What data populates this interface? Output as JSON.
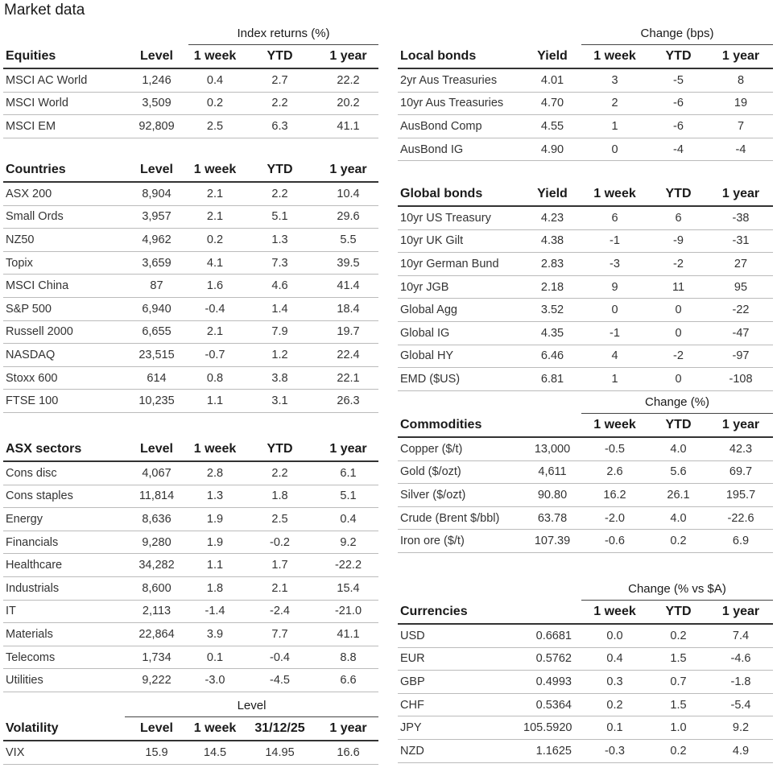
{
  "title": "Market data",
  "tables": [
    {
      "group_header": "Index returns (%)",
      "columns": [
        "Equities",
        "Level",
        "1 week",
        "YTD",
        "1 year"
      ],
      "rows": [
        [
          "MSCI AC World",
          "1,246",
          "0.4",
          "2.7",
          "22.2"
        ],
        [
          "MSCI World",
          "3,509",
          "0.2",
          "2.2",
          "20.2"
        ],
        [
          "MSCI EM",
          "92,809",
          "2.5",
          "6.3",
          "41.1"
        ]
      ]
    },
    {
      "columns": [
        "Countries",
        "Level",
        "1 week",
        "YTD",
        "1 year"
      ],
      "rows": [
        [
          "ASX 200",
          "8,904",
          "2.1",
          "2.2",
          "10.4"
        ],
        [
          "Small Ords",
          "3,957",
          "2.1",
          "5.1",
          "29.6"
        ],
        [
          "NZ50",
          "4,962",
          "0.2",
          "1.3",
          "5.5"
        ],
        [
          "Topix",
          "3,659",
          "4.1",
          "7.3",
          "39.5"
        ],
        [
          "MSCI China",
          "87",
          "1.6",
          "4.6",
          "41.4"
        ],
        [
          "S&P 500",
          "6,940",
          "-0.4",
          "1.4",
          "18.4"
        ],
        [
          "Russell 2000",
          "6,655",
          "2.1",
          "7.9",
          "19.7"
        ],
        [
          "NASDAQ",
          "23,515",
          "-0.7",
          "1.2",
          "22.4"
        ],
        [
          "Stoxx 600",
          "614",
          "0.8",
          "3.8",
          "22.1"
        ],
        [
          "FTSE 100",
          "10,235",
          "1.1",
          "3.1",
          "26.3"
        ]
      ]
    },
    {
      "columns": [
        "ASX sectors",
        "Level",
        "1 week",
        "YTD",
        "1 year"
      ],
      "rows": [
        [
          "Cons disc",
          "4,067",
          "2.8",
          "2.2",
          "6.1"
        ],
        [
          "Cons staples",
          "11,814",
          "1.3",
          "1.8",
          "5.1"
        ],
        [
          "Energy",
          "8,636",
          "1.9",
          "2.5",
          "0.4"
        ],
        [
          "Financials",
          "9,280",
          "1.9",
          "-0.2",
          "9.2"
        ],
        [
          "Healthcare",
          "34,282",
          "1.1",
          "1.7",
          "-22.2"
        ],
        [
          "Industrials",
          "8,600",
          "1.8",
          "2.1",
          "15.4"
        ],
        [
          "IT",
          "2,113",
          "-1.4",
          "-2.4",
          "-21.0"
        ],
        [
          "Materials",
          "22,864",
          "3.9",
          "7.7",
          "41.1"
        ],
        [
          "Telecoms",
          "1,734",
          "0.1",
          "-0.4",
          "8.8"
        ],
        [
          "Utilities",
          "9,222",
          "-3.0",
          "-4.5",
          "6.6"
        ]
      ]
    },
    {
      "group_header": "Level",
      "columns": [
        "Volatility",
        "Level",
        "1 week",
        "31/12/25",
        "1 year"
      ],
      "rows": [
        [
          "VIX",
          "15.9",
          "14.5",
          "14.95",
          "16.6"
        ]
      ]
    },
    {
      "group_header": "Change (bps)",
      "columns": [
        "Local bonds",
        "Yield",
        "1 week",
        "YTD",
        "1 year"
      ],
      "rows": [
        [
          "2yr Aus Treasuries",
          "4.01",
          "3",
          "-5",
          "8"
        ],
        [
          "10yr Aus Treasuries",
          "4.70",
          "2",
          "-6",
          "19"
        ],
        [
          "AusBond Comp",
          "4.55",
          "1",
          "-6",
          "7"
        ],
        [
          "AusBond IG",
          "4.90",
          "0",
          "-4",
          "-4"
        ]
      ]
    },
    {
      "columns": [
        "Global bonds",
        "Yield",
        "1 week",
        "YTD",
        "1 year"
      ],
      "rows": [
        [
          "10yr US Treasury",
          "4.23",
          "6",
          "6",
          "-38"
        ],
        [
          "10yr UK Gilt",
          "4.38",
          "-1",
          "-9",
          "-31"
        ],
        [
          "10yr German Bund",
          "2.83",
          "-3",
          "-2",
          "27"
        ],
        [
          "10yr JGB",
          "2.18",
          "9",
          "11",
          "95"
        ],
        [
          "Global Agg",
          "3.52",
          "0",
          "0",
          "-22"
        ],
        [
          "Global IG",
          "4.35",
          "-1",
          "0",
          "-47"
        ],
        [
          "Global HY",
          "6.46",
          "4",
          "-2",
          "-97"
        ],
        [
          "EMD ($US)",
          "6.81",
          "1",
          "0",
          "-108"
        ]
      ]
    },
    {
      "group_header": "Change (%)",
      "columns": [
        "Commodities",
        null,
        "1 week",
        "YTD",
        "1 year"
      ],
      "rows": [
        [
          "Copper ($/t)",
          "13,000",
          "-0.5",
          "4.0",
          "42.3"
        ],
        [
          "Gold ($/ozt)",
          "4,611",
          "2.6",
          "5.6",
          "69.7"
        ],
        [
          "Silver ($/ozt)",
          "90.80",
          "16.2",
          "26.1",
          "195.7"
        ],
        [
          "Crude (Brent $/bbl)",
          "63.78",
          "-2.0",
          "4.0",
          "-22.6"
        ],
        [
          "Iron ore ($/t)",
          "107.39",
          "-0.6",
          "0.2",
          "6.9"
        ]
      ]
    },
    {
      "group_header": "Change (% vs $A)",
      "columns": [
        "Currencies",
        null,
        "1 week",
        "YTD",
        "1 year"
      ],
      "rows": [
        [
          "USD",
          "0.6681",
          "0.0",
          "0.2",
          "7.4"
        ],
        [
          "EUR",
          "0.5762",
          "0.4",
          "1.5",
          "-4.6"
        ],
        [
          "GBP",
          "0.4993",
          "0.3",
          "0.7",
          "-1.8"
        ],
        [
          "CHF",
          "0.5364",
          "0.2",
          "1.5",
          "-5.4"
        ],
        [
          "JPY",
          "105.5920",
          "0.1",
          "1.0",
          "9.2"
        ],
        [
          "NZD",
          "1.1625",
          "-0.3",
          "0.2",
          "4.9"
        ]
      ]
    }
  ]
}
